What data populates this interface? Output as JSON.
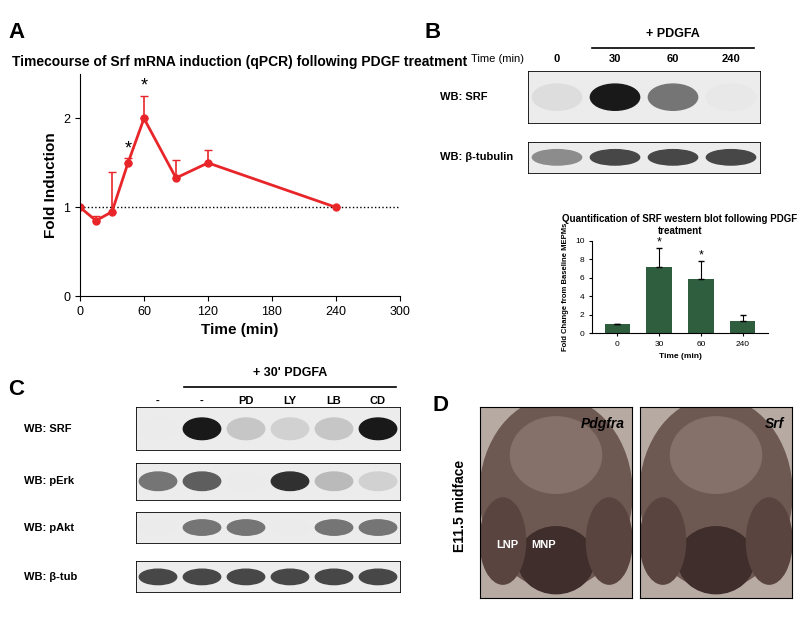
{
  "chart_data": [
    {
      "type": "line",
      "title": "Timecourse of Srf mRNA induction (qPCR) following PDGF treatment",
      "x_label": "Time (min)",
      "y_label": "Fold Induction",
      "x": [
        0,
        15,
        30,
        45,
        60,
        90,
        120,
        240
      ],
      "values": [
        1.0,
        0.85,
        0.95,
        1.5,
        2.0,
        1.33,
        1.5,
        1.0
      ],
      "errors": [
        0,
        0.05,
        0.45,
        0.05,
        0.25,
        0.2,
        0.15,
        0
      ],
      "baseline": 1,
      "annotations": [
        {
          "x": 45,
          "text": "*"
        },
        {
          "x": 60,
          "text": "*"
        }
      ],
      "color": "#e8262a",
      "marker": "o",
      "xlim": [
        0,
        300
      ],
      "xticks": [
        0,
        60,
        120,
        180,
        240,
        300
      ],
      "ylim": [
        0,
        2.5
      ],
      "yticks": [
        0,
        1,
        2
      ]
    },
    {
      "type": "bar",
      "title": "Quantification of SRF western blot following PDGF treatment",
      "x_label": "Time (min)",
      "y_label": "Fold Change from Baseline MEPMs",
      "categories": [
        "0",
        "30",
        "60",
        "240"
      ],
      "values": [
        1.0,
        7.1,
        5.9,
        1.3
      ],
      "errors": [
        0,
        2.1,
        1.9,
        0.7
      ],
      "annotations": [
        {
          "category": "30",
          "text": "*"
        },
        {
          "category": "60",
          "text": "*"
        }
      ],
      "color": "#2e5e3e",
      "ylim": [
        0,
        10
      ],
      "yticks": [
        0,
        2,
        4,
        6,
        8,
        10
      ]
    }
  ],
  "figure": {
    "panel_labels": [
      "A",
      "B",
      "C",
      "D"
    ]
  },
  "blots": [
    {
      "header": "+ PDGFA",
      "lane_axis_label": "Time (min)",
      "lanes": [
        "0",
        "30",
        "60",
        "240"
      ],
      "rows": [
        {
          "label": "WB: SRF",
          "bands": [
            0.15,
            1.0,
            0.6,
            0.1
          ]
        },
        {
          "label": "WB: β-tubulin",
          "bands": [
            0.5,
            0.8,
            0.8,
            0.8
          ]
        }
      ]
    },
    {
      "header": "+ 30' PDGFA",
      "lanes": [
        "-",
        "-",
        "PD",
        "LY",
        "LB",
        "CD"
      ],
      "rows": [
        {
          "label": "WB: SRF",
          "bands": [
            0.05,
            1.0,
            0.25,
            0.2,
            0.25,
            1.0
          ]
        },
        {
          "label": "WB: pErk",
          "bands": [
            0.6,
            0.7,
            0.0,
            0.9,
            0.3,
            0.2
          ]
        },
        {
          "label": "WB: pAkt",
          "bands": [
            0.0,
            0.6,
            0.6,
            0.05,
            0.6,
            0.6
          ]
        },
        {
          "label": "WB: β-tub",
          "bands": [
            0.8,
            0.8,
            0.8,
            0.8,
            0.8,
            0.8
          ]
        }
      ]
    }
  ],
  "images": {
    "side_label": "E11.5 midface",
    "panels": [
      {
        "gene": "Pdgfra",
        "regions": [
          "LNP",
          "MNP"
        ]
      },
      {
        "gene": "Srf",
        "regions": []
      }
    ]
  }
}
